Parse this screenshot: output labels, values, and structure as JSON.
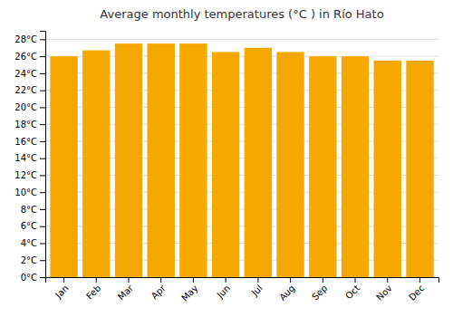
{
  "chart_data": {
    "type": "bar",
    "title": "Average monthly temperatures (°C ) in Río Hato",
    "categories": [
      "Jan",
      "Feb",
      "Mar",
      "Apr",
      "May",
      "Jun",
      "Jul",
      "Aug",
      "Sep",
      "Oct",
      "Nov",
      "Dec"
    ],
    "values": [
      26.0,
      26.7,
      27.5,
      27.5,
      27.5,
      26.5,
      27.0,
      26.5,
      26.0,
      26.0,
      25.5,
      25.5
    ],
    "color": "#F5A800",
    "ylim": [
      0,
      29
    ],
    "yticks": [
      {
        "value": 0,
        "label": "0°C"
      },
      {
        "value": 2,
        "label": "2°C"
      },
      {
        "value": 4,
        "label": "4°C"
      },
      {
        "value": 6,
        "label": "6°C"
      },
      {
        "value": 8,
        "label": "8°C"
      },
      {
        "value": 10,
        "label": "10°C"
      },
      {
        "value": 12,
        "label": "12°C"
      },
      {
        "value": 14,
        "label": "14°C"
      },
      {
        "value": 16,
        "label": "16°C"
      },
      {
        "value": 18,
        "label": "18°C"
      },
      {
        "value": 20,
        "label": "20°C"
      },
      {
        "value": 22,
        "label": "22°C"
      },
      {
        "value": 24,
        "label": "24°C"
      },
      {
        "value": 26,
        "label": "26°C"
      },
      {
        "value": 28,
        "label": "28°C"
      }
    ],
    "grid": true
  }
}
